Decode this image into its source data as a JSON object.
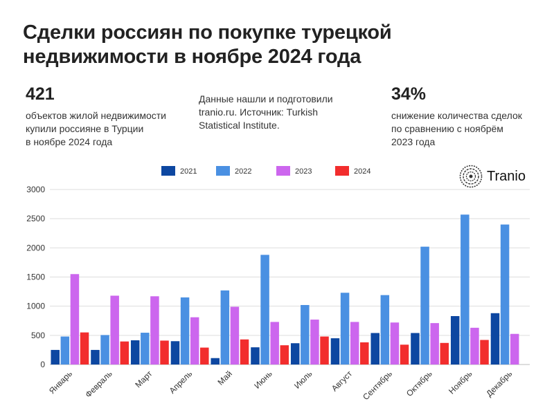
{
  "header": {
    "title_line1": "Сделки россиян по покупке турецкой",
    "title_line2": "недвижимости в ноябре 2024 года"
  },
  "stats": {
    "left_value": "421",
    "left_desc": [
      "объектов жилой недвижимости",
      "купили россияне в Турции",
      "в ноябре 2024 года"
    ],
    "source_desc": [
      "Данные нашли и подготовили",
      "tranio.ru. Источник: Turkish",
      "Statistical Institute."
    ],
    "right_value": "34%",
    "right_desc": [
      "снижение количества сделок",
      "по сравнению с ноябрём",
      "2023 года"
    ]
  },
  "logo": {
    "text": "Tranio",
    "icon": "tranio-logo-icon"
  },
  "chart_data": {
    "type": "bar",
    "categories": [
      "Январь",
      "Февраль",
      "Март",
      "Апрель",
      "Май",
      "Июнь",
      "Июль",
      "Август",
      "Сентябрь",
      "Октябрь",
      "Ноябрь",
      "Декабрь"
    ],
    "series": [
      {
        "name": "2021",
        "color": "#0d47a1",
        "values": [
          250,
          250,
          415,
          400,
          110,
          295,
          365,
          450,
          540,
          540,
          830,
          880
        ]
      },
      {
        "name": "2022",
        "color": "#4a90e2",
        "values": [
          480,
          505,
          545,
          1150,
          1270,
          1880,
          1020,
          1230,
          1190,
          2020,
          2570,
          2400
        ]
      },
      {
        "name": "2023",
        "color": "#cc66ee",
        "values": [
          1550,
          1180,
          1170,
          810,
          990,
          730,
          770,
          730,
          720,
          710,
          630,
          525
        ]
      },
      {
        "name": "2024",
        "color": "#f22d2d",
        "values": [
          550,
          395,
          410,
          290,
          430,
          330,
          480,
          380,
          340,
          370,
          421,
          null
        ]
      }
    ],
    "yticks": [
      0,
      500,
      1000,
      1500,
      2000,
      2500,
      3000
    ],
    "ylim": [
      0,
      3000
    ],
    "grid": true,
    "legend_position": "top"
  }
}
